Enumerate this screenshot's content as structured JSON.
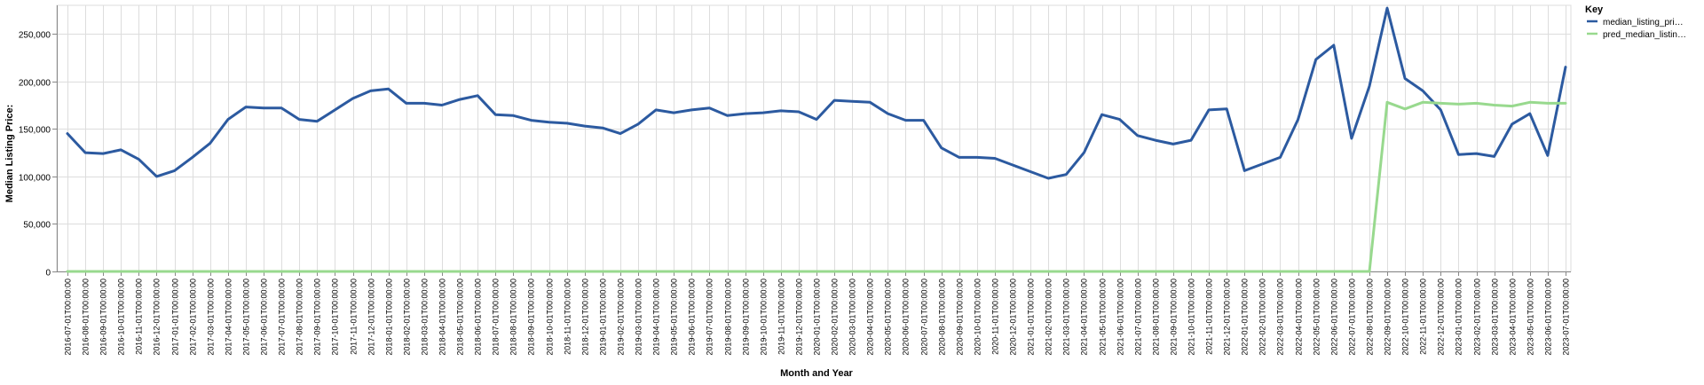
{
  "chart_data": {
    "type": "line",
    "xlabel": "Month and Year",
    "ylabel": "Median Listing Price:",
    "ylim": [
      0,
      280000
    ],
    "yticks": [
      0,
      50000,
      100000,
      150000,
      200000,
      250000
    ],
    "ytick_labels": [
      "0",
      "50,000",
      "100,000",
      "150,000",
      "200,000",
      "250,000"
    ],
    "grid": true,
    "legend": {
      "title": "Key",
      "position": "top-right"
    },
    "x": [
      "2016-07-01T00:00:00",
      "2016-08-01T00:00:00",
      "2016-09-01T00:00:00",
      "2016-10-01T00:00:00",
      "2016-11-01T00:00:00",
      "2016-12-01T00:00:00",
      "2017-01-01T00:00:00",
      "2017-02-01T00:00:00",
      "2017-03-01T00:00:00",
      "2017-04-01T00:00:00",
      "2017-05-01T00:00:00",
      "2017-06-01T00:00:00",
      "2017-07-01T00:00:00",
      "2017-08-01T00:00:00",
      "2017-09-01T00:00:00",
      "2017-10-01T00:00:00",
      "2017-11-01T00:00:00",
      "2017-12-01T00:00:00",
      "2018-01-01T00:00:00",
      "2018-02-01T00:00:00",
      "2018-03-01T00:00:00",
      "2018-04-01T00:00:00",
      "2018-05-01T00:00:00",
      "2018-06-01T00:00:00",
      "2018-07-01T00:00:00",
      "2018-08-01T00:00:00",
      "2018-09-01T00:00:00",
      "2018-10-01T00:00:00",
      "2018-11-01T00:00:00",
      "2018-12-01T00:00:00",
      "2019-01-01T00:00:00",
      "2019-02-01T00:00:00",
      "2019-03-01T00:00:00",
      "2019-04-01T00:00:00",
      "2019-05-01T00:00:00",
      "2019-06-01T00:00:00",
      "2019-07-01T00:00:00",
      "2019-08-01T00:00:00",
      "2019-09-01T00:00:00",
      "2019-10-01T00:00:00",
      "2019-11-01T00:00:00",
      "2019-12-01T00:00:00",
      "2020-01-01T00:00:00",
      "2020-02-01T00:00:00",
      "2020-03-01T00:00:00",
      "2020-04-01T00:00:00",
      "2020-05-01T00:00:00",
      "2020-06-01T00:00:00",
      "2020-07-01T00:00:00",
      "2020-08-01T00:00:00",
      "2020-09-01T00:00:00",
      "2020-10-01T00:00:00",
      "2020-11-01T00:00:00",
      "2020-12-01T00:00:00",
      "2021-01-01T00:00:00",
      "2021-02-01T00:00:00",
      "2021-03-01T00:00:00",
      "2021-04-01T00:00:00",
      "2021-05-01T00:00:00",
      "2021-06-01T00:00:00",
      "2021-07-01T00:00:00",
      "2021-08-01T00:00:00",
      "2021-09-01T00:00:00",
      "2021-10-01T00:00:00",
      "2021-11-01T00:00:00",
      "2021-12-01T00:00:00",
      "2022-01-01T00:00:00",
      "2022-02-01T00:00:00",
      "2022-03-01T00:00:00",
      "2022-04-01T00:00:00",
      "2022-05-01T00:00:00",
      "2022-06-01T00:00:00",
      "2022-07-01T00:00:00",
      "2022-08-01T00:00:00",
      "2022-09-01T00:00:00",
      "2022-10-01T00:00:00",
      "2022-11-01T00:00:00",
      "2022-12-01T00:00:00",
      "2023-01-01T00:00:00",
      "2023-02-01T00:00:00",
      "2023-03-01T00:00:00",
      "2023-04-01T00:00:00",
      "2023-05-01T00:00:00",
      "2023-06-01T00:00:00",
      "2023-07-01T00:00:00"
    ],
    "series": [
      {
        "name": "median_listing_pri…",
        "color": "#2c5aa0",
        "values": [
          145000,
          125000,
          124000,
          128000,
          118000,
          100000,
          106000,
          120000,
          135000,
          160000,
          173000,
          172000,
          172000,
          160000,
          158000,
          170000,
          182000,
          190000,
          192000,
          177000,
          177000,
          175000,
          181000,
          185000,
          165000,
          164000,
          159000,
          157000,
          156000,
          153000,
          151000,
          145000,
          155000,
          170000,
          167000,
          170000,
          172000,
          164000,
          166000,
          167000,
          169000,
          168000,
          160000,
          180000,
          179000,
          178000,
          166000,
          159000,
          159000,
          130000,
          120000,
          120000,
          119000,
          112000,
          105000,
          98000,
          102000,
          125000,
          165000,
          160000,
          143000,
          138000,
          134000,
          138000,
          170000,
          171000,
          106000,
          113000,
          120000,
          160000,
          223000,
          238000,
          140000,
          195000,
          277000,
          203000,
          190000,
          170000,
          123000,
          124000,
          121000,
          155000,
          166000,
          122000,
          215000
        ]
      },
      {
        "name": "pred_median_listin…",
        "color": "#98d98e",
        "values": [
          0,
          0,
          0,
          0,
          0,
          0,
          0,
          0,
          0,
          0,
          0,
          0,
          0,
          0,
          0,
          0,
          0,
          0,
          0,
          0,
          0,
          0,
          0,
          0,
          0,
          0,
          0,
          0,
          0,
          0,
          0,
          0,
          0,
          0,
          0,
          0,
          0,
          0,
          0,
          0,
          0,
          0,
          0,
          0,
          0,
          0,
          0,
          0,
          0,
          0,
          0,
          0,
          0,
          0,
          0,
          0,
          0,
          0,
          0,
          0,
          0,
          0,
          0,
          0,
          0,
          0,
          0,
          0,
          0,
          0,
          0,
          0,
          0,
          0,
          178000,
          171000,
          178000,
          177000,
          176000,
          177000,
          175000,
          174000,
          178000,
          177000,
          177000
        ]
      }
    ]
  }
}
